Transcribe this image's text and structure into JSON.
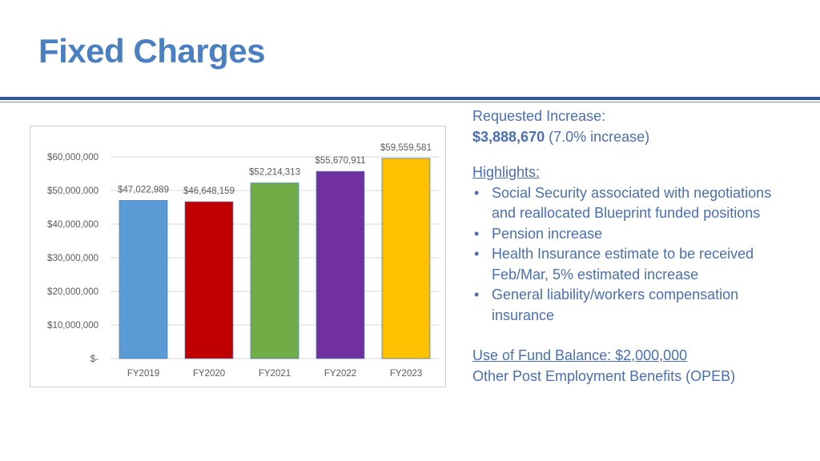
{
  "slide": {
    "title": "Fixed Charges"
  },
  "summary": {
    "requested_label": "Requested Increase:",
    "requested_amount": "$3,888,670",
    "requested_pct": "(7.0% increase)",
    "highlights_label": "Highlights:",
    "bullets": [
      [
        "Social Security associated with negotiations",
        "and reallocated Blueprint funded positions"
      ],
      [
        "Pension increase"
      ],
      [
        "Health Insurance estimate to be received",
        "Feb/Mar, 5% estimated increase"
      ],
      [
        "General liability/workers compensation",
        "insurance"
      ]
    ],
    "bullet_glyph": "•",
    "fund_balance": "Use of Fund Balance:  $2,000,000",
    "opeb": "Other Post Employment Benefits (OPEB)"
  },
  "chart_data": {
    "type": "bar",
    "categories": [
      "FY2019",
      "FY2020",
      "FY2021",
      "FY2022",
      "FY2023"
    ],
    "values": [
      47022989,
      46648159,
      52214313,
      55670911,
      59559581
    ],
    "data_labels": [
      "$47,022,989",
      "$46,648,159",
      "$52,214,313",
      "$55,670,911",
      "$59,559,581"
    ],
    "colors": [
      "#5b9bd5",
      "#c00000",
      "#70ad47",
      "#7030a0",
      "#ffc000"
    ],
    "ylim": [
      0,
      60000000
    ],
    "yticks": [
      0,
      10000000,
      20000000,
      30000000,
      40000000,
      50000000,
      60000000
    ],
    "ytick_labels": [
      "$-",
      "$10,000,000",
      "$20,000,000",
      "$30,000,000",
      "$40,000,000",
      "$50,000,000",
      "$60,000,000"
    ],
    "grid": true,
    "title": "",
    "xlabel": "",
    "ylabel": ""
  }
}
